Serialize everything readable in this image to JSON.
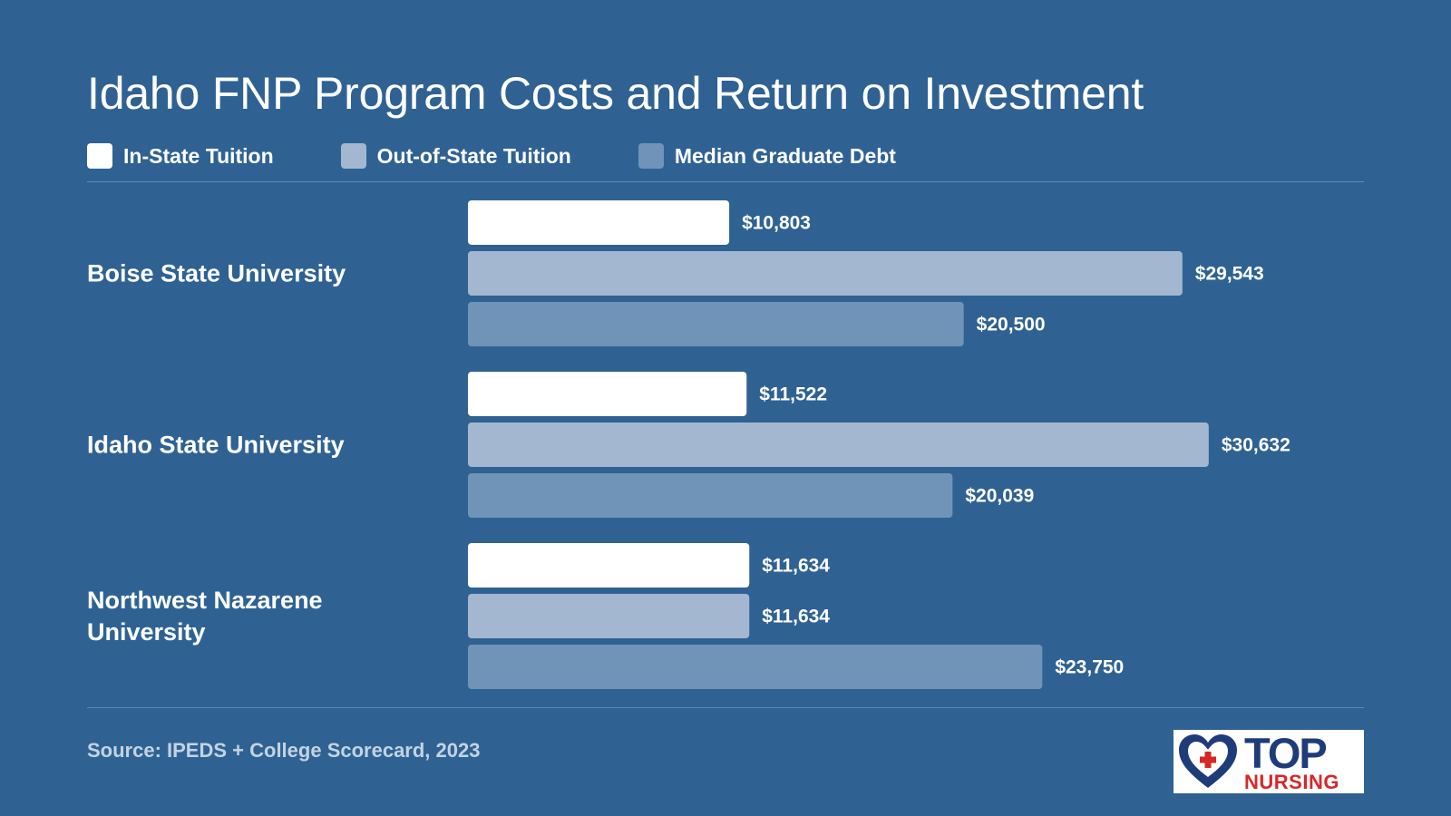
{
  "title": "Idaho FNP Program Costs and Return on Investment",
  "legend": [
    {
      "label": "In-State Tuition",
      "color": "#ffffff"
    },
    {
      "label": "Out-of-State Tuition",
      "color": "#a3b8d0"
    },
    {
      "label": "Median Graduate Debt",
      "color": "#7094b8"
    }
  ],
  "source": "Source: IPEDS + College Scorecard, 2023",
  "logo": {
    "top": "TOP",
    "nursing": "NURSING",
    "icon": "heart-plus-icon"
  },
  "chart_data": {
    "type": "bar",
    "orientation": "horizontal",
    "title": "Idaho FNP Program Costs and Return on Investment",
    "categories": [
      "Boise State University",
      "Idaho State University",
      "Northwest Nazarene University"
    ],
    "series": [
      {
        "name": "In-State Tuition",
        "color": "#ffffff",
        "values": [
          10803,
          11522,
          11634
        ],
        "labels": [
          "$10,803",
          "$11,522",
          "$11,634"
        ]
      },
      {
        "name": "Out-of-State Tuition",
        "color": "#a3b8d0",
        "values": [
          29543,
          30632,
          11634
        ],
        "labels": [
          "$29,543",
          "$30,632",
          "$11,634"
        ]
      },
      {
        "name": "Median Graduate Debt",
        "color": "#7094b8",
        "values": [
          20500,
          20039,
          23750
        ],
        "labels": [
          "$20,500",
          "$20,039",
          "$23,750"
        ]
      }
    ],
    "xlim": [
      0,
      36000
    ],
    "grid": false,
    "legend_position": "top-left"
  }
}
